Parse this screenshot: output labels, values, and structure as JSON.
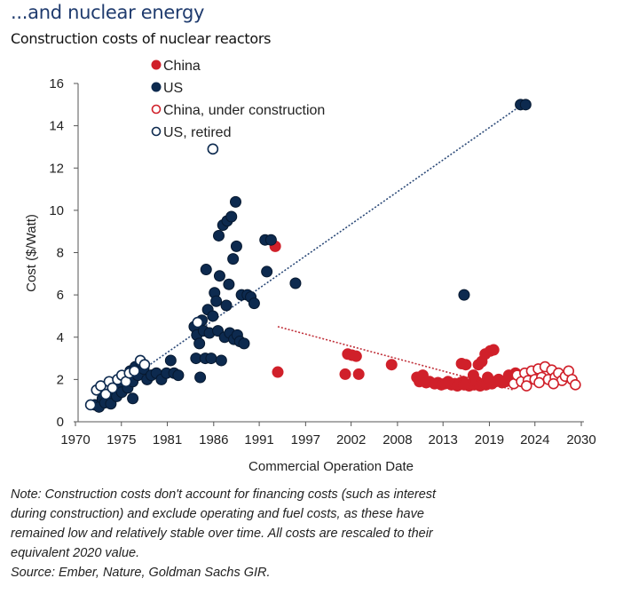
{
  "header": {
    "title": "...and nuclear energy",
    "subtitle": "Construction costs of nuclear reactors"
  },
  "footer": {
    "note_lines": [
      "Note: Construction costs don't account for financing costs (such as interest",
      "during construction) and exclude operating and fuel costs, as these have",
      "remained low and relatively stable over time. All costs are rescaled to their",
      "equivalent 2020 value."
    ],
    "source": "Source: Ember, Nature, Goldman Sachs GIR."
  },
  "chart_data": {
    "type": "scatter",
    "title": "Construction costs of nuclear reactors",
    "xlabel": "Commercial Operation Date",
    "ylabel": "Cost ($/Watt)",
    "xlim": [
      1970,
      2030
    ],
    "ylim": [
      0,
      16
    ],
    "x_ticks": [
      1970,
      1975.45,
      1980.9,
      1986.4,
      1991.8,
      1997.3,
      2002.7,
      2008.2,
      2013.6,
      2019.1,
      2024.5,
      2030
    ],
    "x_tick_labels": [
      "1970",
      "1975",
      "1981",
      "1986",
      "1991",
      "1997",
      "2002",
      "2008",
      "2013",
      "2019",
      "2024",
      "2030"
    ],
    "y_ticks": [
      0,
      2,
      4,
      6,
      8,
      10,
      12,
      14,
      16
    ],
    "y_tick_labels": [
      "0",
      "2",
      "4",
      "6",
      "8",
      "10",
      "12",
      "14",
      "16"
    ],
    "grid": false,
    "legend_position": "top-center",
    "colors": {
      "china": "#d0202a",
      "us": "#0d2a4f"
    },
    "series": [
      {
        "name": "China",
        "style": "filled",
        "color": "#d0202a",
        "points": [
          [
            1993.7,
            8.3
          ],
          [
            1994,
            2.35
          ],
          [
            2002,
            2.25
          ],
          [
            2002.3,
            3.2
          ],
          [
            2002.8,
            3.15
          ],
          [
            2003.3,
            3.1
          ],
          [
            2003.6,
            2.25
          ],
          [
            2007.5,
            2.7
          ],
          [
            2010.5,
            2.1
          ],
          [
            2010.8,
            1.9
          ],
          [
            2011.2,
            2.2
          ],
          [
            2011.6,
            1.85
          ],
          [
            2012,
            1.9
          ],
          [
            2012.6,
            1.8
          ],
          [
            2013,
            1.85
          ],
          [
            2013.4,
            1.75
          ],
          [
            2013.8,
            1.8
          ],
          [
            2014.2,
            1.9
          ],
          [
            2014.6,
            1.75
          ],
          [
            2015,
            1.8
          ],
          [
            2015.3,
            1.7
          ],
          [
            2015.7,
            1.85
          ],
          [
            2016,
            1.9
          ],
          [
            2016.4,
            1.75
          ],
          [
            2016.7,
            1.7
          ],
          [
            2017,
            1.8
          ],
          [
            2017.3,
            1.75
          ],
          [
            2017.6,
            1.9
          ],
          [
            2018,
            1.7
          ],
          [
            2018.4,
            1.8
          ],
          [
            2018.7,
            1.75
          ],
          [
            2019,
            1.85
          ],
          [
            2019.4,
            1.8
          ],
          [
            2019.8,
            1.9
          ],
          [
            2020.2,
            2.0
          ],
          [
            2020.6,
            1.85
          ],
          [
            2021,
            1.9
          ],
          [
            2021.4,
            2.2
          ],
          [
            2021.8,
            1.95
          ],
          [
            2022.2,
            2.3
          ],
          [
            2015.8,
            2.75
          ],
          [
            2016.3,
            2.7
          ],
          [
            2017.8,
            2.7
          ],
          [
            2018.2,
            2.85
          ],
          [
            2018.6,
            3.2
          ],
          [
            2019.2,
            3.35
          ],
          [
            2019.6,
            3.4
          ],
          [
            2016.1,
            1.75
          ],
          [
            2022.6,
            1.95
          ],
          [
            2023.0,
            2.1
          ],
          [
            2017.2,
            2.2
          ],
          [
            2018.9,
            2.1
          ]
        ]
      },
      {
        "name": "US",
        "style": "filled",
        "color": "#0d2a4f",
        "points": [
          [
            1972.3,
            0.8
          ],
          [
            1972.8,
            0.7
          ],
          [
            1973.2,
            1.1
          ],
          [
            1973.5,
            0.9
          ],
          [
            1973.9,
            1.3
          ],
          [
            1974.2,
            0.85
          ],
          [
            1974.6,
            1.5
          ],
          [
            1974.9,
            1.2
          ],
          [
            1975.2,
            1.7
          ],
          [
            1975.5,
            1.4
          ],
          [
            1975.9,
            2.0
          ],
          [
            1976.2,
            1.6
          ],
          [
            1976.5,
            2.4
          ],
          [
            1976.8,
            1.9
          ],
          [
            1977.1,
            2.6
          ],
          [
            1977.4,
            2.2
          ],
          [
            1977.8,
            2.8
          ],
          [
            1978.1,
            2.5
          ],
          [
            1978.5,
            2.0
          ],
          [
            1976.8,
            1.1
          ],
          [
            1979,
            2.2
          ],
          [
            1979.6,
            2.3
          ],
          [
            1980.2,
            2.0
          ],
          [
            1980.8,
            2.3
          ],
          [
            1981.3,
            2.9
          ],
          [
            1981.7,
            2.3
          ],
          [
            1982.2,
            2.2
          ],
          [
            1984.1,
            4.5
          ],
          [
            1984.4,
            4.1
          ],
          [
            1984.7,
            3.7
          ],
          [
            1984.3,
            3.0
          ],
          [
            1984.8,
            2.1
          ],
          [
            1985,
            4.8
          ],
          [
            1985.2,
            4.3
          ],
          [
            1985.4,
            3.0
          ],
          [
            1985.5,
            7.2
          ],
          [
            1985.7,
            5.3
          ],
          [
            1985.9,
            4.2
          ],
          [
            1986.1,
            3.0
          ],
          [
            1986.3,
            5.0
          ],
          [
            1986.5,
            6.1
          ],
          [
            1986.7,
            5.7
          ],
          [
            1986.9,
            4.3
          ],
          [
            1987.0,
            8.8
          ],
          [
            1987.1,
            6.9
          ],
          [
            1987.3,
            2.9
          ],
          [
            1987.5,
            9.3
          ],
          [
            1987.7,
            4.0
          ],
          [
            1987.9,
            5.5
          ],
          [
            1988.0,
            9.5
          ],
          [
            1988.2,
            6.5
          ],
          [
            1988.3,
            4.2
          ],
          [
            1988.5,
            9.7
          ],
          [
            1988.7,
            7.7
          ],
          [
            1988.8,
            3.9
          ],
          [
            1989.0,
            10.4
          ],
          [
            1989.1,
            8.3
          ],
          [
            1989.2,
            4.1
          ],
          [
            1989.5,
            3.8
          ],
          [
            1989.7,
            6.0
          ],
          [
            1990.0,
            3.7
          ],
          [
            1990.4,
            6.0
          ],
          [
            1990.8,
            5.9
          ],
          [
            1991.2,
            5.6
          ],
          [
            1992.5,
            8.6
          ],
          [
            1992.7,
            7.1
          ],
          [
            1993.2,
            8.6
          ],
          [
            1996.1,
            6.55
          ],
          [
            2016.1,
            6.0
          ],
          [
            2022.8,
            15.0
          ],
          [
            2023.4,
            15.0
          ]
        ]
      },
      {
        "name": "China, under construction",
        "style": "hollow",
        "color": "#d0202a",
        "points": [
          [
            2022.0,
            1.8
          ],
          [
            2022.4,
            2.2
          ],
          [
            2022.9,
            1.9
          ],
          [
            2023.3,
            2.3
          ],
          [
            2023.7,
            1.95
          ],
          [
            2024.1,
            2.4
          ],
          [
            2024.5,
            2.0
          ],
          [
            2024.9,
            2.5
          ],
          [
            2025.3,
            2.1
          ],
          [
            2025.7,
            2.6
          ],
          [
            2026.1,
            2.0
          ],
          [
            2026.5,
            2.45
          ],
          [
            2026.9,
            2.1
          ],
          [
            2027.3,
            2.3
          ],
          [
            2027.7,
            1.95
          ],
          [
            2028.1,
            2.15
          ],
          [
            2028.5,
            2.4
          ],
          [
            2028.9,
            2.0
          ],
          [
            2029.3,
            1.75
          ],
          [
            2025.0,
            1.85
          ],
          [
            2026.7,
            1.8
          ],
          [
            2023.5,
            1.7
          ]
        ]
      },
      {
        "name": "US, retired",
        "style": "hollow",
        "color": "#0d2a4f",
        "points": [
          [
            1971.8,
            0.8
          ],
          [
            1972.5,
            1.5
          ],
          [
            1973.0,
            1.7
          ],
          [
            1973.6,
            1.3
          ],
          [
            1974.0,
            1.9
          ],
          [
            1974.4,
            1.6
          ],
          [
            1975.0,
            2.0
          ],
          [
            1975.5,
            2.2
          ],
          [
            1976.0,
            1.9
          ],
          [
            1976.4,
            2.3
          ],
          [
            1977.0,
            2.4
          ],
          [
            1977.7,
            2.9
          ],
          [
            1978.2,
            2.7
          ],
          [
            1984.5,
            4.7
          ],
          [
            1986.3,
            12.9
          ]
        ]
      }
    ],
    "trendlines": [
      {
        "name": "US trend",
        "color": "#2c4a78",
        "from": [
          1972,
          0.8
        ],
        "to": [
          2023,
          15.0
        ]
      },
      {
        "name": "China trend",
        "color": "#c0303a",
        "from": [
          1994,
          4.5
        ],
        "to": [
          2022,
          1.5
        ]
      }
    ]
  }
}
